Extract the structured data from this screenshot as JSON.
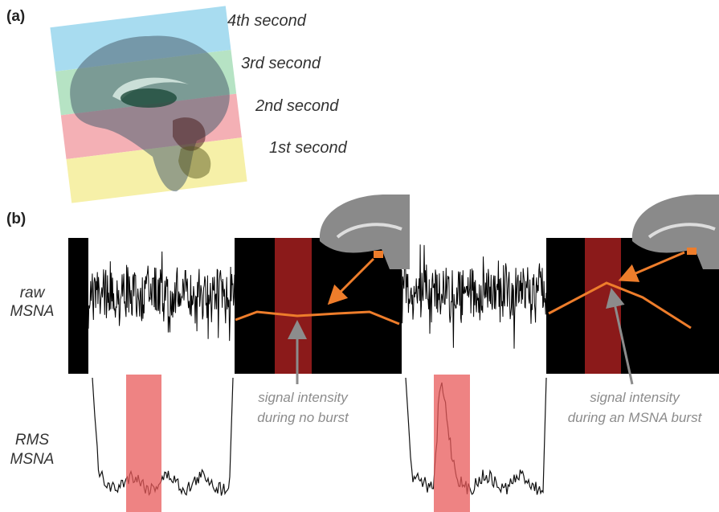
{
  "panel_a": {
    "label": "(a)",
    "slices": [
      "4th second",
      "3rd second",
      "2nd second",
      "1st second"
    ]
  },
  "panel_b": {
    "label": "(b)",
    "rows": [
      {
        "label_lines": [
          "raw",
          "MSNA"
        ]
      },
      {
        "label_lines": [
          "RMS",
          "MSNA"
        ]
      }
    ],
    "annotations": [
      {
        "lines": [
          "signal intensity",
          "during no burst"
        ]
      },
      {
        "lines": [
          "signal intensity",
          "during an MSNA burst"
        ]
      }
    ]
  }
}
